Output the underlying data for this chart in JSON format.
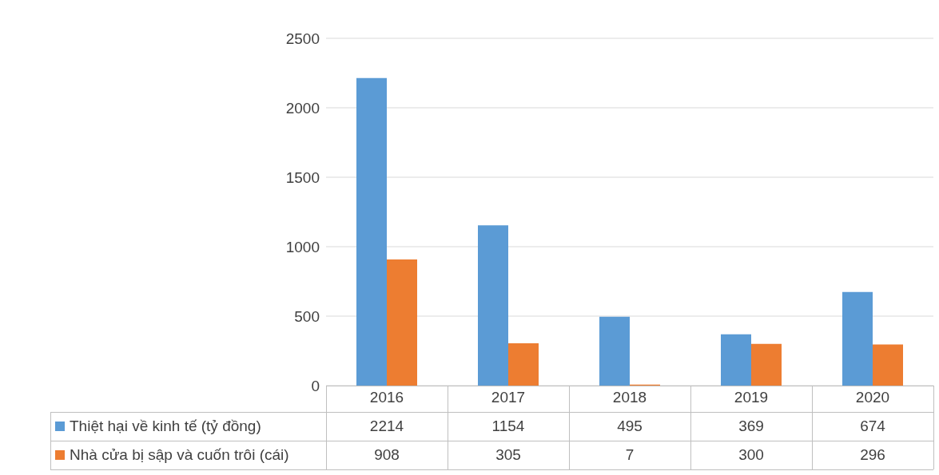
{
  "chart_data": {
    "type": "bar",
    "categories": [
      "2016",
      "2017",
      "2018",
      "2019",
      "2020"
    ],
    "series": [
      {
        "name": "Thiệt hại về kinh tế (tỷ đồng)",
        "color": "#5b9bd5",
        "values": [
          2214,
          1154,
          495,
          369,
          674
        ]
      },
      {
        "name": "Nhà cửa bị sập và cuốn trôi (cái)",
        "color": "#ed7d31",
        "values": [
          908,
          305,
          7,
          300,
          296
        ]
      }
    ],
    "ylim": [
      0,
      2500
    ],
    "yticks": [
      0,
      500,
      1000,
      1500,
      2000,
      2500
    ],
    "grid": "y",
    "legend": "bottom",
    "data_labels": true
  }
}
